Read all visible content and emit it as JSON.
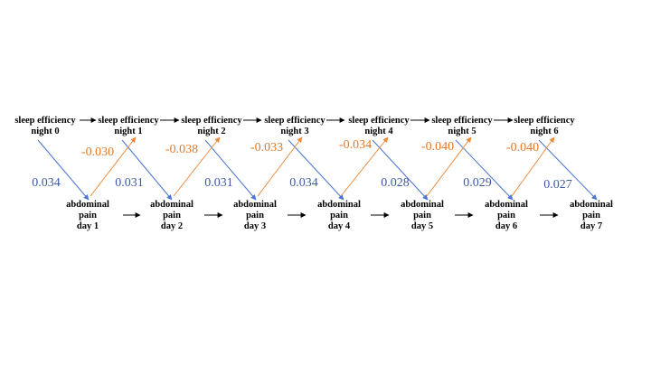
{
  "colors": {
    "blue": "#4a74d4",
    "orange": "#ed8a3a",
    "black": "#000000",
    "blue_text": "#3c5aa8",
    "orange_text": "#e07a2b"
  },
  "sleep_nodes": [
    {
      "line1": "sleep efficiency",
      "line2": "night 0"
    },
    {
      "line1": "sleep efficiency",
      "line2": "night 1"
    },
    {
      "line1": "sleep efficiency",
      "line2": "night 2"
    },
    {
      "line1": "sleep efficiency",
      "line2": "night 3"
    },
    {
      "line1": "sleep efficiency",
      "line2": "night 4"
    },
    {
      "line1": "sleep efficiency",
      "line2": "night 5"
    },
    {
      "line1": "sleep efficiency",
      "line2": "night 6"
    }
  ],
  "pain_nodes": [
    {
      "line1": "abdominal",
      "line2": "pain",
      "line3": "day 1"
    },
    {
      "line1": "abdominal",
      "line2": "pain",
      "line3": "day 2"
    },
    {
      "line1": "abdominal",
      "line2": "pain",
      "line3": "day 3"
    },
    {
      "line1": "abdominal",
      "line2": "pain",
      "line3": "day 4"
    },
    {
      "line1": "abdominal",
      "line2": "pain",
      "line3": "day 5"
    },
    {
      "line1": "abdominal",
      "line2": "pain",
      "line3": "day 6"
    },
    {
      "line1": "abdominal",
      "line2": "pain",
      "line3": "day 7"
    }
  ],
  "sleep_to_pain_coefficients": [
    "0.034",
    "0.031",
    "0.031",
    "0.034",
    "0.028",
    "0.029",
    "0.027"
  ],
  "pain_to_sleep_coefficients": [
    "-0.030",
    "-0.038",
    "-0.033",
    "-0.034",
    "-0.040",
    "-0.040"
  ]
}
